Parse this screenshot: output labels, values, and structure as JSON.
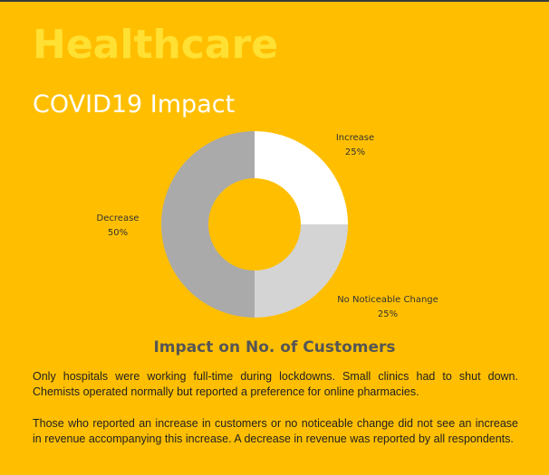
{
  "header": {
    "title": "Healthcare",
    "subtitle": "COVID19 Impact"
  },
  "chart_data": {
    "type": "pie",
    "title": "Impact on No. of Customers",
    "donut": true,
    "slices": [
      {
        "label": "Increase",
        "value": 25,
        "percent_label": "25%",
        "color": "#FFFFFF"
      },
      {
        "label": "No Noticeable Change",
        "value": 25,
        "percent_label": "25%",
        "color": "#D4D4D4"
      },
      {
        "label": "Decrease",
        "value": 50,
        "percent_label": "50%",
        "color": "#AAAAAA"
      }
    ]
  },
  "body": {
    "paragraph_1": "Only hospitals were working full-time during lockdowns. Small clinics had to shut down. Chemists operated normally but reported a preference for online pharmacies.",
    "paragraph_2": "Those who reported an increase in customers or no noticeable change did not see an increase in revenue accompanying this increase.  A decrease in revenue was reported by all respondents."
  }
}
